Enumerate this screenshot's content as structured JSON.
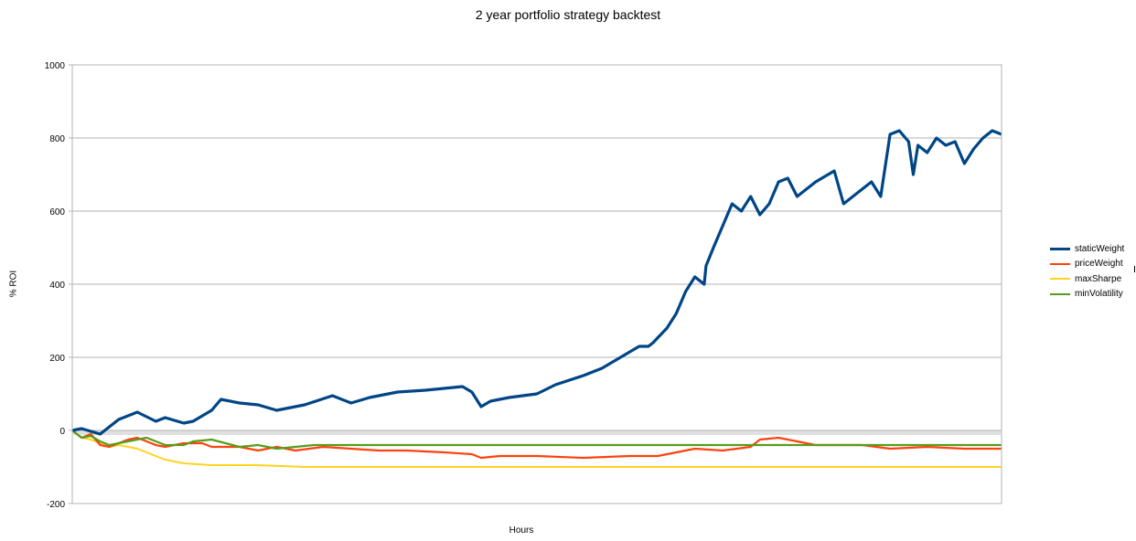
{
  "chart_data": {
    "type": "line",
    "title": "2 year portfolio strategy backtest",
    "xlabel": "Hours",
    "ylabel": "% ROI",
    "ylim": [
      -200,
      1000
    ],
    "yticks": [
      -200,
      0,
      200,
      400,
      600,
      800,
      1000
    ],
    "ytick_labels": [
      "-200",
      "0",
      "200",
      "400",
      "600",
      "800",
      "1000"
    ],
    "grid": true,
    "legend_position": "right",
    "x_range": [
      0,
      100
    ],
    "series": [
      {
        "name": "staticWeight",
        "color": "#004586",
        "x": [
          0,
          1,
          3,
          4,
          5,
          7,
          9,
          10,
          12,
          13,
          15,
          16,
          18,
          20,
          22,
          25,
          28,
          30,
          32,
          35,
          38,
          40,
          42,
          43,
          44,
          45,
          47,
          50,
          52,
          55,
          57,
          60,
          61,
          62,
          62.5,
          64,
          65,
          66,
          67,
          68,
          68.2,
          69,
          71,
          72,
          73,
          74,
          75,
          76,
          77,
          78,
          79,
          80,
          82,
          83,
          85,
          86,
          87,
          88,
          89,
          90,
          90.5,
          91,
          92,
          93,
          94,
          95,
          96,
          97,
          98,
          99,
          100
        ],
        "values": [
          0,
          5,
          -10,
          10,
          30,
          50,
          25,
          35,
          20,
          25,
          55,
          85,
          75,
          70,
          55,
          70,
          95,
          75,
          90,
          105,
          110,
          115,
          120,
          105,
          65,
          80,
          90,
          100,
          125,
          150,
          170,
          215,
          230,
          230,
          240,
          280,
          320,
          380,
          420,
          400,
          450,
          500,
          620,
          600,
          640,
          590,
          620,
          680,
          690,
          640,
          660,
          680,
          710,
          620,
          660,
          680,
          640,
          810,
          820,
          790,
          700,
          780,
          760,
          800,
          780,
          790,
          730,
          770,
          800,
          820,
          810
        ]
      },
      {
        "name": "priceWeight",
        "color": "#ff420e",
        "x": [
          0,
          1,
          2,
          3,
          4,
          6,
          7,
          9,
          10,
          12,
          14,
          15,
          18,
          20,
          22,
          24,
          27,
          30,
          33,
          36,
          40,
          43,
          44,
          46,
          50,
          55,
          60,
          63,
          67,
          70,
          73,
          74,
          76,
          78,
          80,
          83,
          85,
          88,
          92,
          96,
          100
        ],
        "values": [
          0,
          -20,
          -10,
          -40,
          -45,
          -25,
          -20,
          -40,
          -45,
          -35,
          -35,
          -45,
          -45,
          -55,
          -45,
          -55,
          -45,
          -50,
          -55,
          -55,
          -60,
          -65,
          -75,
          -70,
          -70,
          -75,
          -70,
          -70,
          -50,
          -55,
          -45,
          -25,
          -20,
          -30,
          -40,
          -40,
          -40,
          -50,
          -45,
          -50,
          -50
        ]
      },
      {
        "name": "maxSharpe",
        "color": "#ffd320",
        "x": [
          0,
          1,
          2,
          3,
          4,
          5,
          6,
          7,
          8,
          10,
          12,
          15,
          20,
          25,
          100
        ],
        "values": [
          0,
          -20,
          -25,
          -35,
          -45,
          -40,
          -45,
          -50,
          -60,
          -80,
          -90,
          -95,
          -95,
          -100,
          -100
        ]
      },
      {
        "name": "minVolatility",
        "color": "#579d1c",
        "x": [
          0,
          1,
          2,
          3,
          4,
          5,
          6,
          7,
          8,
          10,
          12,
          13,
          15,
          18,
          20,
          22,
          24,
          26,
          29,
          31,
          33,
          36,
          100
        ],
        "values": [
          0,
          -20,
          -15,
          -30,
          -40,
          -35,
          -30,
          -25,
          -20,
          -40,
          -40,
          -30,
          -25,
          -45,
          -40,
          -50,
          -45,
          -40,
          -40,
          -40,
          -40,
          -40,
          -40
        ]
      }
    ]
  }
}
